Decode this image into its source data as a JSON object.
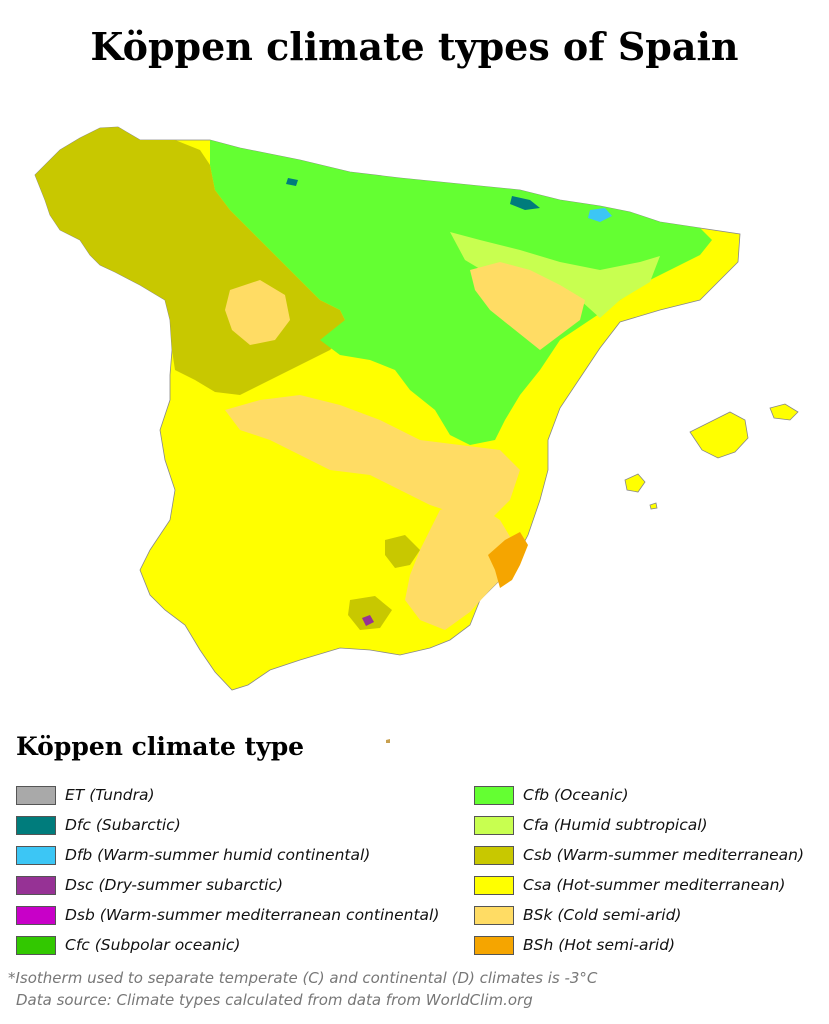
{
  "title": "Köppen climate types of Spain",
  "legend": {
    "title": "Köppen climate type",
    "left": [
      {
        "label": "ET (Tundra)",
        "color": "#a9a9a9"
      },
      {
        "label": "Dfc (Subarctic)",
        "color": "#007c7c"
      },
      {
        "label": "Dfb (Warm-summer humid continental)",
        "color": "#3cc6f5"
      },
      {
        "label": "Dsc (Dry-summer subarctic)",
        "color": "#963295"
      },
      {
        "label": "Dsb (Warm-summer mediterranean continental)",
        "color": "#c800c8"
      },
      {
        "label": "Cfc (Subpolar oceanic)",
        "color": "#32c800"
      }
    ],
    "right": [
      {
        "label": "Cfb (Oceanic)",
        "color": "#64ff32"
      },
      {
        "label": "Cfa (Humid subtropical)",
        "color": "#c8ff50"
      },
      {
        "label": "Csb (Warm-summer mediterranean)",
        "color": "#c8c800"
      },
      {
        "label": "Csa (Hot-summer mediterranean)",
        "color": "#ffff00"
      },
      {
        "label": "BSk (Cold semi-arid)",
        "color": "#ffdc64"
      },
      {
        "label": "BSh (Hot semi-arid)",
        "color": "#f5a500"
      }
    ]
  },
  "footnote": {
    "line1": "*Isotherm used to separate temperate (C) and continental (D) climates is -3°C",
    "line2": "Data source: Climate types calculated from data from WorldClim.org"
  }
}
